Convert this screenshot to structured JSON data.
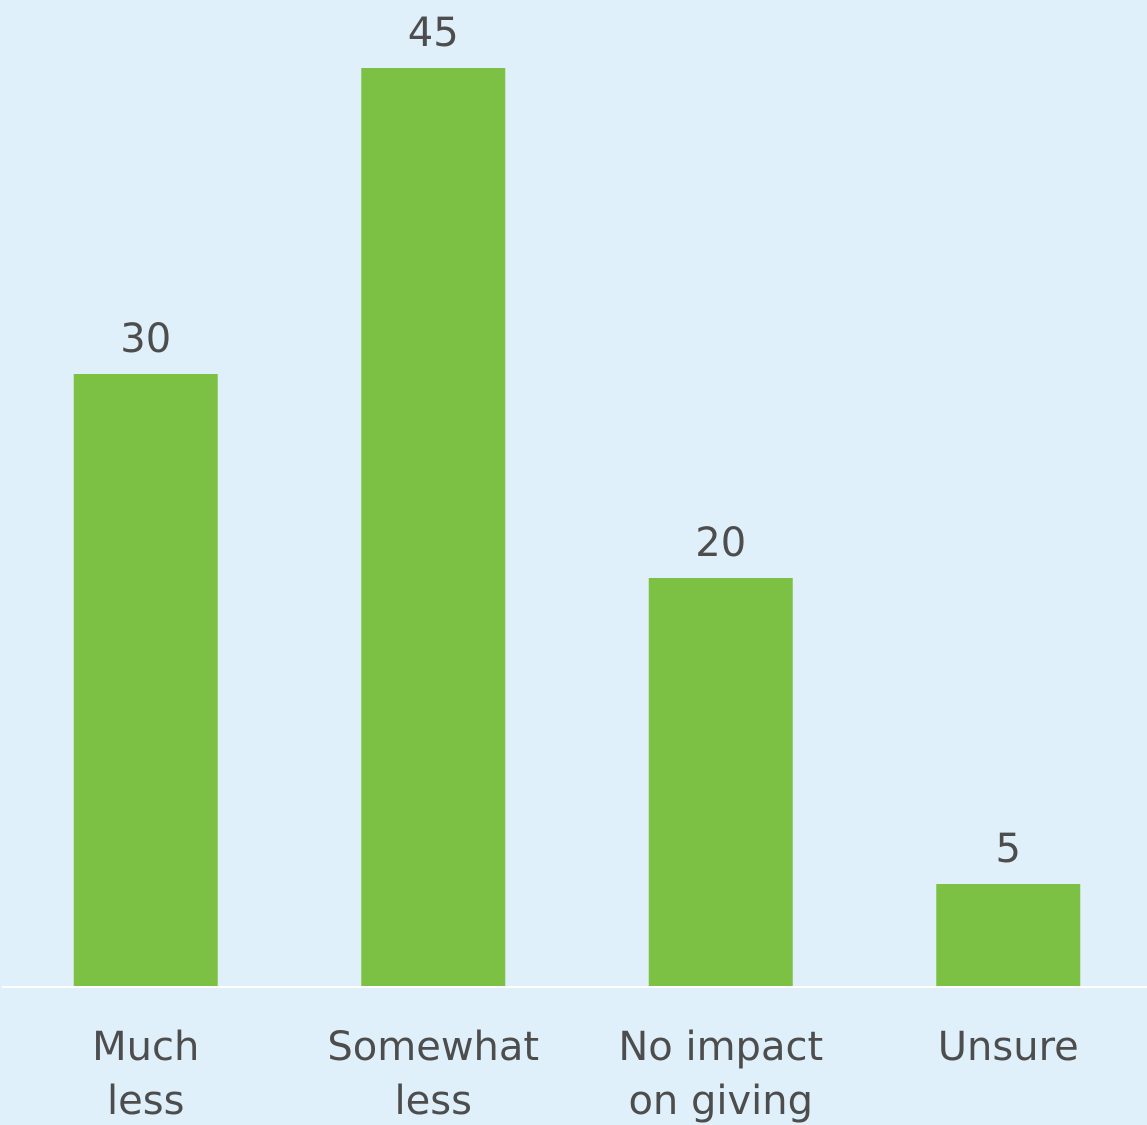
{
  "chart_data": {
    "type": "bar",
    "categories": [
      [
        "Much",
        "less"
      ],
      [
        "Somewhat",
        "less"
      ],
      [
        "No impact",
        "on giving"
      ],
      [
        "Unsure"
      ]
    ],
    "values": [
      30,
      45,
      20,
      5
    ],
    "title": "",
    "xlabel": "",
    "ylabel": "",
    "ylim": [
      0,
      45
    ],
    "grid": false,
    "legend": "none"
  },
  "colors": {
    "background": "#dff0fa",
    "bar": "#7cc144",
    "text": "#4d4d4d",
    "axis": "#ffffff"
  }
}
